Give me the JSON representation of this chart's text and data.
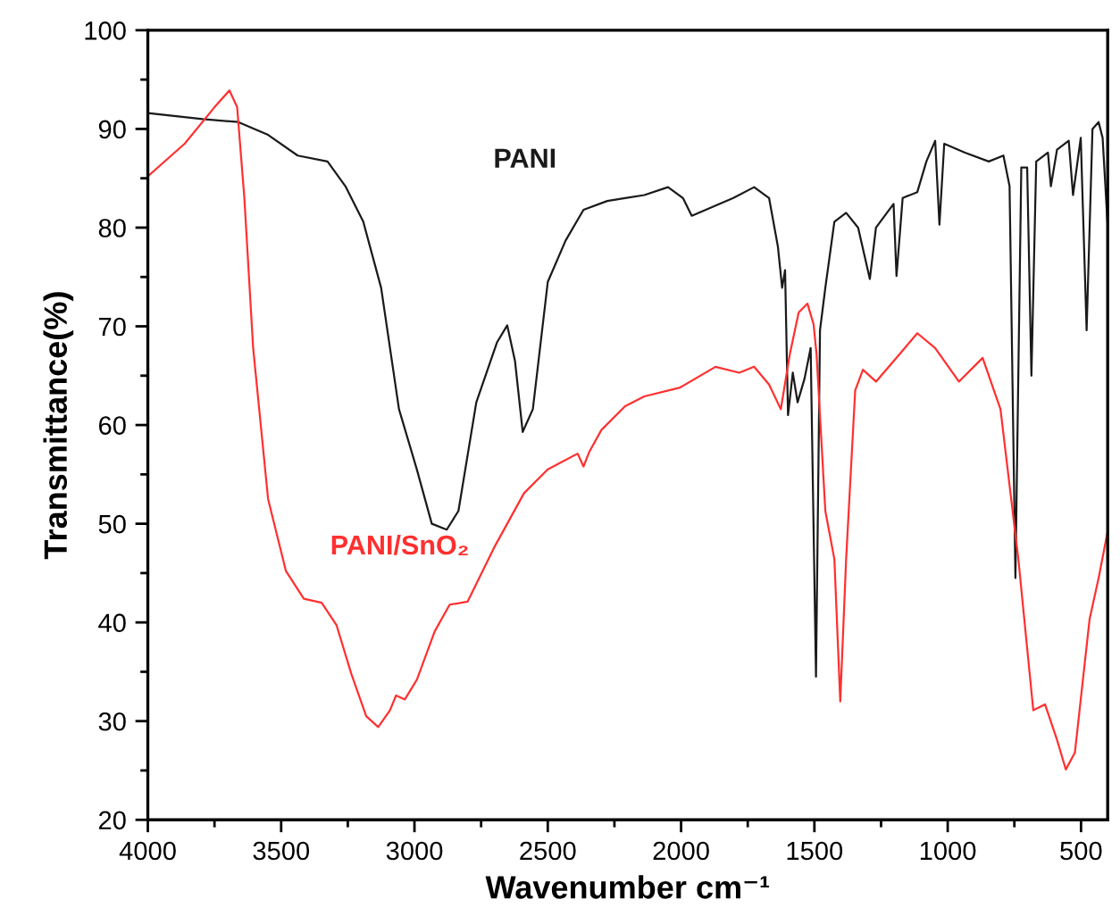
{
  "chart_data": {
    "type": "line",
    "xlabel": "Wavenumber cm⁻¹",
    "ylabel": "Transmittance(%)",
    "xlim": [
      4000,
      400
    ],
    "xticks": [
      4000,
      3500,
      3000,
      2500,
      2000,
      1500,
      1000,
      500
    ],
    "ylim": [
      20,
      100
    ],
    "yticks": [
      20,
      30,
      40,
      50,
      60,
      70,
      80,
      90,
      100
    ],
    "grid": false,
    "legend": false,
    "marker": "none",
    "line_style": "solid",
    "series": [
      {
        "name": "PANI",
        "color": "#1a1a1a",
        "x": [
          4000,
          3795,
          3661,
          3549,
          3438,
          3326,
          3259,
          3192,
          3125,
          3058,
          2991,
          2935,
          2879,
          2835,
          2768,
          2690,
          2652,
          2623,
          2594,
          2556,
          2500,
          2433,
          2366,
          2277,
          2210,
          2138,
          2049,
          1993,
          1960,
          1882,
          1804,
          1726,
          1670,
          1637,
          1621,
          1610,
          1599,
          1581,
          1563,
          1537,
          1514,
          1494,
          1479,
          1459,
          1425,
          1381,
          1336,
          1292,
          1269,
          1203,
          1192,
          1169,
          1114,
          1080,
          1047,
          1031,
          1013,
          935,
          846,
          791,
          768,
          746,
          724,
          702,
          686,
          668,
          624,
          613,
          590,
          546,
          530,
          501,
          479,
          457,
          434,
          419,
          401
        ],
        "values": [
          91.6,
          91.0,
          90.7,
          89.4,
          87.3,
          86.7,
          84.2,
          80.6,
          73.9,
          61.6,
          55.5,
          50.0,
          49.4,
          51.3,
          62.3,
          68.4,
          70.1,
          66.5,
          59.3,
          61.6,
          74.5,
          78.7,
          81.8,
          82.7,
          83.0,
          83.3,
          84.1,
          83.0,
          81.2,
          82.1,
          83.0,
          84.1,
          83.0,
          78.1,
          73.9,
          75.7,
          61.0,
          65.3,
          62.3,
          64.7,
          67.8,
          34.5,
          69.6,
          73.9,
          80.6,
          81.5,
          80.0,
          74.8,
          80.0,
          82.4,
          75.1,
          83.0,
          83.6,
          86.7,
          88.8,
          80.3,
          88.5,
          87.6,
          86.7,
          87.3,
          84.2,
          44.5,
          86.1,
          86.1,
          65.0,
          86.7,
          87.6,
          84.2,
          87.9,
          88.8,
          83.3,
          89.1,
          69.6,
          90.0,
          90.7,
          89.1,
          80.6
        ]
      },
      {
        "name": "PANI/SnO₂",
        "color": "#ff3030",
        "x": [
          4000,
          3862,
          3750,
          3694,
          3665,
          3638,
          3605,
          3549,
          3482,
          3415,
          3348,
          3292,
          3237,
          3181,
          3136,
          3092,
          3069,
          3036,
          2991,
          2924,
          2868,
          2801,
          2701,
          2589,
          2500,
          2388,
          2366,
          2344,
          2299,
          2210,
          2138,
          2004,
          1871,
          1782,
          1726,
          1670,
          1626,
          1592,
          1559,
          1526,
          1503,
          1492,
          1459,
          1425,
          1403,
          1381,
          1347,
          1318,
          1269,
          1180,
          1114,
          1047,
          958,
          869,
          802,
          735,
          679,
          635,
          590,
          557,
          523,
          468,
          434,
          401
        ],
        "values": [
          85.2,
          88.5,
          92.2,
          93.9,
          92.2,
          83.0,
          67.8,
          52.5,
          45.2,
          42.4,
          42.0,
          39.7,
          34.8,
          30.5,
          29.4,
          31.1,
          32.6,
          32.2,
          34.2,
          39.1,
          41.8,
          42.1,
          47.6,
          53.1,
          55.5,
          57.1,
          55.8,
          57.3,
          59.5,
          61.9,
          62.9,
          63.8,
          65.9,
          65.3,
          65.9,
          64.1,
          61.6,
          67.2,
          71.4,
          72.3,
          70.2,
          67.2,
          51.3,
          46.4,
          32.0,
          46.4,
          63.5,
          65.6,
          64.4,
          67.2,
          69.3,
          67.8,
          64.4,
          66.8,
          61.6,
          46.4,
          31.1,
          31.7,
          28.1,
          25.1,
          26.8,
          40.3,
          44.5,
          49.1
        ]
      }
    ]
  }
}
